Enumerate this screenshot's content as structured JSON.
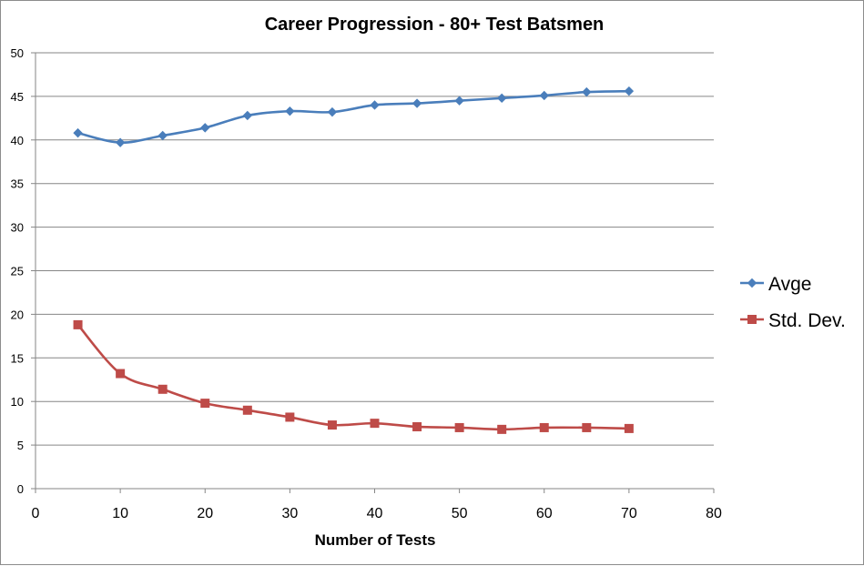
{
  "chart_data": {
    "type": "line",
    "title": "Career Progression - 80+ Test Batsmen",
    "xlabel": "Number of Tests",
    "ylabel": "",
    "xlim": [
      0,
      80
    ],
    "ylim": [
      0,
      50
    ],
    "xticks": [
      "0",
      "10",
      "20",
      "30",
      "40",
      "50",
      "60",
      "70",
      "80"
    ],
    "yticks": [
      "0",
      "5",
      "10",
      "15",
      "20",
      "25",
      "30",
      "35",
      "40",
      "45",
      "50"
    ],
    "grid": "horizontal",
    "legend_position": "right",
    "x": [
      5,
      10,
      15,
      20,
      25,
      30,
      35,
      40,
      45,
      50,
      55,
      60,
      65,
      70
    ],
    "series": [
      {
        "name": "Avge",
        "color": "#4a7ebb",
        "marker": "diamond",
        "values": [
          40.8,
          39.7,
          40.5,
          41.4,
          42.8,
          43.3,
          43.2,
          44.0,
          44.2,
          44.5,
          44.8,
          45.1,
          45.5,
          45.6
        ]
      },
      {
        "name": "Std. Dev.",
        "color": "#be4b48",
        "marker": "square",
        "values": [
          18.8,
          13.2,
          11.4,
          9.8,
          9.0,
          8.2,
          7.3,
          7.5,
          7.1,
          7.0,
          6.8,
          7.0,
          7.0,
          6.9
        ]
      }
    ]
  }
}
